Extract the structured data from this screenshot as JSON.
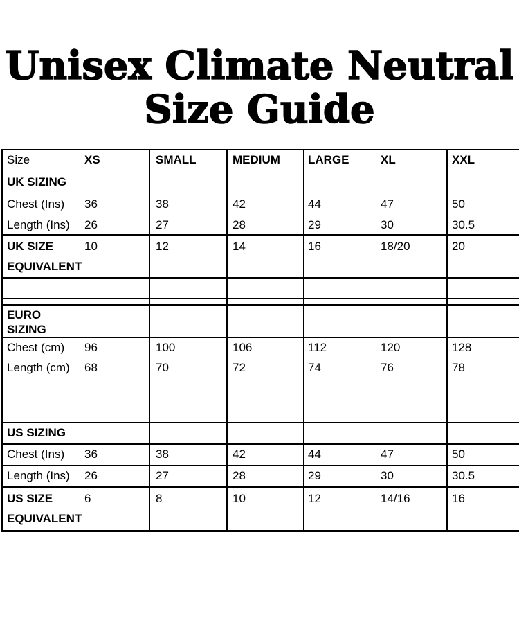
{
  "title": {
    "line1": "Unisex Climate Neutral",
    "line2": "Size Guide"
  },
  "table": {
    "rows": [
      {
        "c0": "Size",
        "c1": "XS",
        "c2": "SMALL",
        "c3": "MEDIUM",
        "c4": "LARGE",
        "c5": "XL",
        "c6": "XXL"
      },
      {
        "c0": "UK SIZING",
        "c1": "",
        "c2": "",
        "c3": "",
        "c4": "",
        "c5": "",
        "c6": ""
      },
      {
        "c0": "Chest (Ins)",
        "c1": "36",
        "c2": "38",
        "c3": "42",
        "c4": "44",
        "c5": "47",
        "c6": "50"
      },
      {
        "c0": "Length (Ins)",
        "c1": "26",
        "c2": "27",
        "c3": "28",
        "c4": "29",
        "c5": "30",
        "c6": "30.5"
      },
      {
        "c0": "UK SIZE EQUIVALENT",
        "c1": "10",
        "c2": "12",
        "c3": "14",
        "c4": "16",
        "c5": "18/20",
        "c6": "20"
      },
      {
        "c0": "",
        "c1": "",
        "c2": "",
        "c3": "",
        "c4": "",
        "c5": "",
        "c6": ""
      },
      {
        "c0": "",
        "c1": "",
        "c2": "",
        "c3": "",
        "c4": "",
        "c5": "",
        "c6": ""
      },
      {
        "c0": "EURO SIZING",
        "c1": "",
        "c2": "",
        "c3": "",
        "c4": "",
        "c5": "",
        "c6": ""
      },
      {
        "c0": "Chest (cm)",
        "c1": "96",
        "c2": "100",
        "c3": "106",
        "c4": "112",
        "c5": "120",
        "c6": "128"
      },
      {
        "c0": "Length (cm)",
        "c1": "68",
        "c2": "70",
        "c3": "72",
        "c4": "74",
        "c5": "76",
        "c6": "78"
      },
      {
        "c0": "",
        "c1": "",
        "c2": "",
        "c3": "",
        "c4": "",
        "c5": "",
        "c6": ""
      },
      {
        "c0": "US SIZING",
        "c1": "",
        "c2": "",
        "c3": "",
        "c4": "",
        "c5": "",
        "c6": ""
      },
      {
        "c0": "Chest (Ins)",
        "c1": "36",
        "c2": "38",
        "c3": "42",
        "c4": "44",
        "c5": "47",
        "c6": "50"
      },
      {
        "c0": "Length (Ins)",
        "c1": "26",
        "c2": "27",
        "c3": "28",
        "c4": "29",
        "c5": "30",
        "c6": "30.5"
      },
      {
        "c0": "US SIZE EQUIVALENT",
        "c1": "6",
        "c2": "8",
        "c3": "10",
        "c4": "12",
        "c5": "14/16",
        "c6": "16"
      }
    ]
  },
  "colors": {
    "background": "#ffffff",
    "text": "#000000",
    "border": "#000000"
  }
}
